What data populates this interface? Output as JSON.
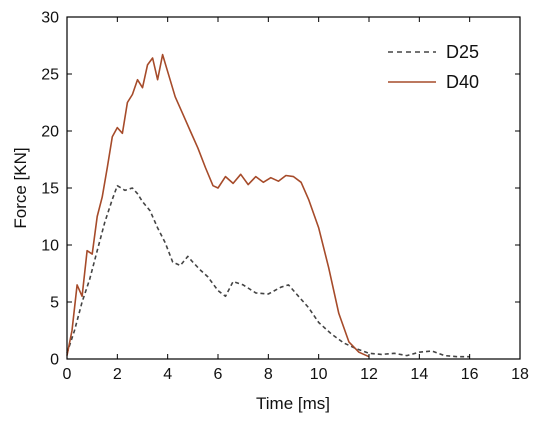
{
  "chart_data": {
    "type": "line",
    "title": "",
    "xlabel": "Time [ms]",
    "ylabel": "Force [KN]",
    "xlim": [
      0,
      18
    ],
    "ylim": [
      0,
      30
    ],
    "xticks": [
      "0",
      "2",
      "4",
      "6",
      "8",
      "10",
      "12",
      "14",
      "16",
      "18"
    ],
    "yticks": [
      "0",
      "5",
      "10",
      "15",
      "20",
      "25",
      "30"
    ],
    "legend_position": "top-right",
    "grid": false,
    "series": [
      {
        "name": "D25",
        "color": "#444444",
        "style": "dashed",
        "points": [
          [
            0,
            0.5
          ],
          [
            0.3,
            2.5
          ],
          [
            0.6,
            5.0
          ],
          [
            0.9,
            7.0
          ],
          [
            1.2,
            9.5
          ],
          [
            1.5,
            12.0
          ],
          [
            1.8,
            14.0
          ],
          [
            2.0,
            15.2
          ],
          [
            2.3,
            14.8
          ],
          [
            2.6,
            15.0
          ],
          [
            2.8,
            14.5
          ],
          [
            3.0,
            13.8
          ],
          [
            3.3,
            13.0
          ],
          [
            3.6,
            11.5
          ],
          [
            3.9,
            10.2
          ],
          [
            4.2,
            8.5
          ],
          [
            4.5,
            8.2
          ],
          [
            4.8,
            9.0
          ],
          [
            5.0,
            8.5
          ],
          [
            5.3,
            7.8
          ],
          [
            5.6,
            7.2
          ],
          [
            6.0,
            6.0
          ],
          [
            6.3,
            5.5
          ],
          [
            6.6,
            6.8
          ],
          [
            7.0,
            6.5
          ],
          [
            7.5,
            5.8
          ],
          [
            8.0,
            5.7
          ],
          [
            8.5,
            6.3
          ],
          [
            8.8,
            6.5
          ],
          [
            9.2,
            5.5
          ],
          [
            9.6,
            4.5
          ],
          [
            10.0,
            3.2
          ],
          [
            10.5,
            2.2
          ],
          [
            11.0,
            1.4
          ],
          [
            11.5,
            0.9
          ],
          [
            12.0,
            0.5
          ],
          [
            12.5,
            0.4
          ],
          [
            13.0,
            0.5
          ],
          [
            13.5,
            0.3
          ],
          [
            14.0,
            0.6
          ],
          [
            14.5,
            0.7
          ],
          [
            15.0,
            0.3
          ],
          [
            15.5,
            0.2
          ],
          [
            16.0,
            0.2
          ]
        ]
      },
      {
        "name": "D40",
        "color": "#a64b2a",
        "style": "solid",
        "points": [
          [
            0,
            0.3
          ],
          [
            0.2,
            2.5
          ],
          [
            0.4,
            6.5
          ],
          [
            0.6,
            5.5
          ],
          [
            0.8,
            9.5
          ],
          [
            1.0,
            9.2
          ],
          [
            1.2,
            12.5
          ],
          [
            1.4,
            14.2
          ],
          [
            1.6,
            16.8
          ],
          [
            1.8,
            19.5
          ],
          [
            2.0,
            20.3
          ],
          [
            2.2,
            19.8
          ],
          [
            2.4,
            22.5
          ],
          [
            2.6,
            23.2
          ],
          [
            2.8,
            24.5
          ],
          [
            3.0,
            23.8
          ],
          [
            3.2,
            25.8
          ],
          [
            3.4,
            26.4
          ],
          [
            3.6,
            24.5
          ],
          [
            3.8,
            26.7
          ],
          [
            4.0,
            25.2
          ],
          [
            4.3,
            23.0
          ],
          [
            4.6,
            21.5
          ],
          [
            4.9,
            20.0
          ],
          [
            5.2,
            18.5
          ],
          [
            5.5,
            16.8
          ],
          [
            5.8,
            15.2
          ],
          [
            6.0,
            15.0
          ],
          [
            6.3,
            16.0
          ],
          [
            6.6,
            15.4
          ],
          [
            6.9,
            16.2
          ],
          [
            7.2,
            15.3
          ],
          [
            7.5,
            16.0
          ],
          [
            7.8,
            15.5
          ],
          [
            8.1,
            15.9
          ],
          [
            8.4,
            15.6
          ],
          [
            8.7,
            16.1
          ],
          [
            9.0,
            16.0
          ],
          [
            9.3,
            15.5
          ],
          [
            9.6,
            14.0
          ],
          [
            10.0,
            11.5
          ],
          [
            10.4,
            8.0
          ],
          [
            10.8,
            4.0
          ],
          [
            11.2,
            1.5
          ],
          [
            11.6,
            0.6
          ],
          [
            12.0,
            0.2
          ]
        ]
      }
    ]
  }
}
